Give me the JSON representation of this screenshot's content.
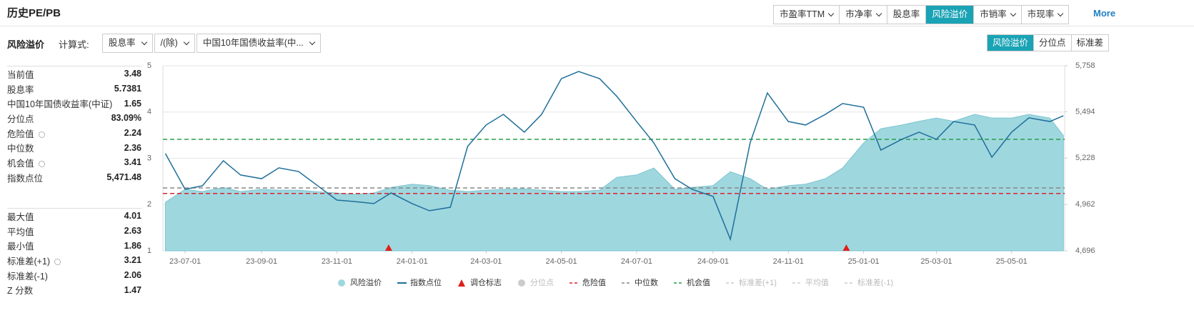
{
  "header": {
    "title": "历史PE/PB",
    "tabs": [
      {
        "label": "市盈率TTM",
        "dropdown": true,
        "active": false
      },
      {
        "label": "市净率",
        "dropdown": true,
        "active": false
      },
      {
        "label": "股息率",
        "dropdown": false,
        "active": false
      },
      {
        "label": "风险溢价",
        "dropdown": false,
        "active": true
      },
      {
        "label": "市销率",
        "dropdown": true,
        "active": false
      },
      {
        "label": "市现率",
        "dropdown": true,
        "active": false
      }
    ],
    "more": "More"
  },
  "toolbar": {
    "label": "风险溢价",
    "formula_label": "计算式:",
    "selects": [
      "股息率",
      "/(除)",
      "中国10年国债收益率(中..."
    ],
    "views": [
      {
        "label": "风险溢价",
        "active": true
      },
      {
        "label": "分位点",
        "active": false
      },
      {
        "label": "标准差",
        "active": false
      }
    ]
  },
  "stats": [
    [
      {
        "label": "当前值",
        "value": "3.48"
      },
      {
        "label": "股息率",
        "value": "5.7381"
      },
      {
        "label": "中国10年国债收益率(中证)",
        "value": "1.65"
      },
      {
        "label": "分位点",
        "value": "83.09%"
      },
      {
        "label": "危险值",
        "value": "2.24",
        "settings": true
      },
      {
        "label": "中位数",
        "value": "2.36"
      },
      {
        "label": "机会值",
        "value": "3.41",
        "settings": true
      },
      {
        "label": "指数点位",
        "value": "5,471.48"
      }
    ],
    [
      {
        "label": "最大值",
        "value": "4.01"
      },
      {
        "label": "平均值",
        "value": "2.63"
      },
      {
        "label": "最小值",
        "value": "1.86"
      },
      {
        "label": "标准差(+1)",
        "value": "3.21",
        "settings": true
      },
      {
        "label": "标准差(-1)",
        "value": "2.06"
      },
      {
        "label": "Z 分数",
        "value": "1.47"
      }
    ]
  ],
  "chart_data": {
    "type": "line",
    "x": [
      "23-06-15",
      "23-07-01",
      "23-07-15",
      "23-08-01",
      "23-08-15",
      "23-09-01",
      "23-09-15",
      "23-10-01",
      "23-10-15",
      "23-11-01",
      "23-11-15",
      "23-12-01",
      "23-12-15",
      "24-01-01",
      "24-01-15",
      "24-02-01",
      "24-02-15",
      "24-03-01",
      "24-03-15",
      "24-04-01",
      "24-04-15",
      "24-05-01",
      "24-05-15",
      "24-06-01",
      "24-06-15",
      "24-07-01",
      "24-07-15",
      "24-08-01",
      "24-08-15",
      "24-09-01",
      "24-09-15",
      "24-10-01",
      "24-10-15",
      "24-11-01",
      "24-11-15",
      "24-12-01",
      "24-12-15",
      "25-01-01",
      "25-01-15",
      "25-02-01",
      "25-02-15",
      "25-03-01",
      "25-03-15",
      "25-04-01",
      "25-04-15",
      "25-05-01",
      "25-05-15",
      "25-06-01",
      "25-06-12"
    ],
    "series": [
      {
        "name": "风险溢价",
        "kind": "area",
        "color": "#9fd7df",
        "values": [
          2.05,
          2.33,
          2.28,
          2.37,
          2.28,
          2.33,
          2.31,
          2.31,
          2.28,
          2.25,
          2.22,
          2.25,
          2.37,
          2.44,
          2.41,
          2.31,
          2.28,
          2.31,
          2.33,
          2.34,
          2.31,
          2.28,
          2.28,
          2.31,
          2.59,
          2.64,
          2.79,
          2.33,
          2.37,
          2.41,
          2.71,
          2.56,
          2.33,
          2.41,
          2.44,
          2.56,
          2.79,
          3.33,
          3.64,
          3.72,
          3.8,
          3.87,
          3.8,
          3.95,
          3.87,
          3.87,
          3.95,
          3.87,
          3.49
        ]
      },
      {
        "name": "指数点位",
        "kind": "line",
        "axis": "y2",
        "color": "#1f6f9a",
        "values": [
          5254,
          5049,
          5069,
          5213,
          5131,
          5110,
          5172,
          5151,
          5077,
          4987,
          4979,
          4967,
          5028,
          4967,
          4926,
          4946,
          5295,
          5418,
          5479,
          5377,
          5479,
          5684,
          5725,
          5684,
          5582,
          5438,
          5315,
          5110,
          5049,
          5008,
          4762,
          5315,
          5602,
          5438,
          5418,
          5479,
          5541,
          5520,
          5274,
          5336,
          5377,
          5336,
          5438,
          5418,
          5233,
          5377,
          5459,
          5438,
          5471
        ]
      },
      {
        "name": "分位点",
        "kind": "dot",
        "color": "#cccccc",
        "visible": false
      }
    ],
    "markers": {
      "name": "调仓标志",
      "color": "#e0201a",
      "x": [
        "23-12-13",
        "24-12-18"
      ]
    },
    "reference_lines": [
      {
        "name": "危险值",
        "value": 2.24,
        "color": "#d9232b",
        "visible": true
      },
      {
        "name": "中位数",
        "value": 2.36,
        "color": "#888888",
        "visible": true
      },
      {
        "name": "机会值",
        "value": 3.41,
        "color": "#2a9d4b",
        "visible": true
      },
      {
        "name": "标准差(+1)",
        "value": 3.21,
        "color": "#cccccc",
        "visible": false
      },
      {
        "name": "平均值",
        "value": 2.63,
        "color": "#cccccc",
        "visible": false
      },
      {
        "name": "标准差(-1)",
        "value": 2.06,
        "color": "#cccccc",
        "visible": false
      }
    ],
    "xlim": [
      "23-06-13",
      "25-06-13"
    ],
    "xticks": [
      "23-07-01",
      "23-09-01",
      "23-11-01",
      "24-01-01",
      "24-03-01",
      "24-05-01",
      "24-07-01",
      "24-09-01",
      "24-11-01",
      "25-01-01",
      "25-03-01",
      "25-05-01"
    ],
    "ylim": [
      1,
      5
    ],
    "yticks": [
      1,
      2,
      3,
      4,
      5
    ],
    "y2lim": [
      4696,
      5758
    ],
    "y2ticks": [
      {
        "value": 4696,
        "label": "4,696"
      },
      {
        "value": 4962,
        "label": "4,962"
      },
      {
        "value": 5228,
        "label": "5,228"
      },
      {
        "value": 5494,
        "label": "5,494"
      },
      {
        "value": 5758,
        "label": "5,758"
      }
    ],
    "grid": true
  }
}
